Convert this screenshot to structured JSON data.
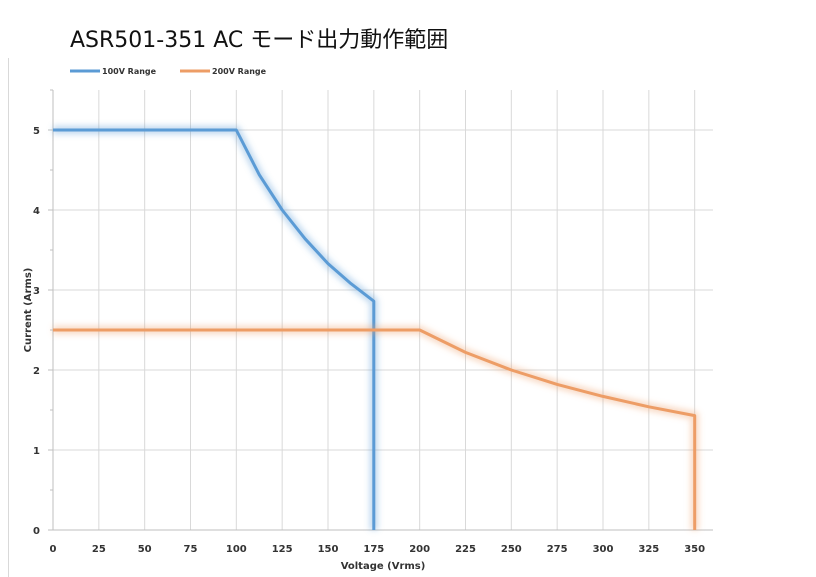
{
  "chart_data": {
    "type": "line",
    "title": "ASR501-351 AC モード出力動作範囲",
    "xlabel": "Voltage (Vrms)",
    "ylabel": "Current (Arms)",
    "xlim": [
      0,
      360
    ],
    "ylim": [
      0,
      5.5
    ],
    "xticks": [
      0,
      25,
      50,
      75,
      100,
      125,
      150,
      175,
      200,
      225,
      250,
      275,
      300,
      325,
      350
    ],
    "yticks": [
      0,
      1,
      2,
      3,
      4,
      5
    ],
    "minor_yticks": [
      0.5,
      1.5,
      2.5,
      3.5,
      4.5,
      5.5
    ],
    "grid": true,
    "legend_position": "top-left",
    "series": [
      {
        "name": "100V Range",
        "color": "#5b9bd5",
        "x": [
          0,
          100,
          112.5,
          125,
          137.5,
          150,
          162.5,
          175,
          175
        ],
        "y": [
          5,
          5,
          4.44,
          4.0,
          3.64,
          3.33,
          3.08,
          2.86,
          0
        ]
      },
      {
        "name": "200V Range",
        "color": "#ed9d66",
        "x": [
          0,
          200,
          225,
          250,
          275,
          300,
          325,
          350,
          350
        ],
        "y": [
          2.5,
          2.5,
          2.22,
          2.0,
          1.82,
          1.67,
          1.54,
          1.43,
          0
        ]
      }
    ]
  }
}
